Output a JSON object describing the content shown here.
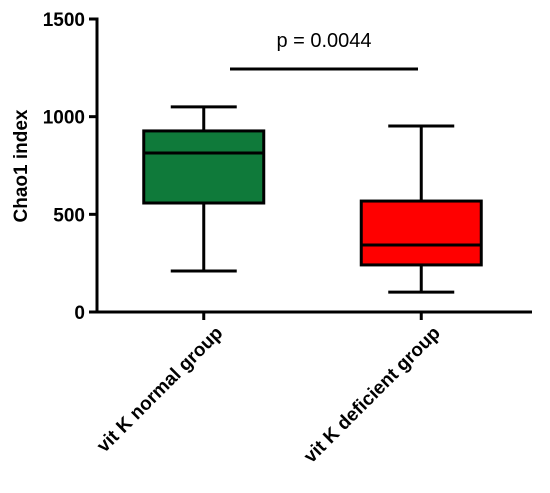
{
  "chart_data": {
    "type": "box",
    "y_label": "Chao1 index",
    "categories": [
      "vit K normal group",
      "vit K deficient group"
    ],
    "boxes": [
      {
        "color": "#0f7a3a",
        "min": 210,
        "q1": 558,
        "median": 814,
        "q3": 927,
        "max": 1050
      },
      {
        "color": "#ff0000",
        "min": 102,
        "q1": 241,
        "median": 343,
        "q3": 568,
        "max": 952
      }
    ],
    "ylim": [
      0,
      1500
    ],
    "yticks": [
      0,
      500,
      1000,
      1500
    ],
    "annotation": "p = 0.0044"
  }
}
